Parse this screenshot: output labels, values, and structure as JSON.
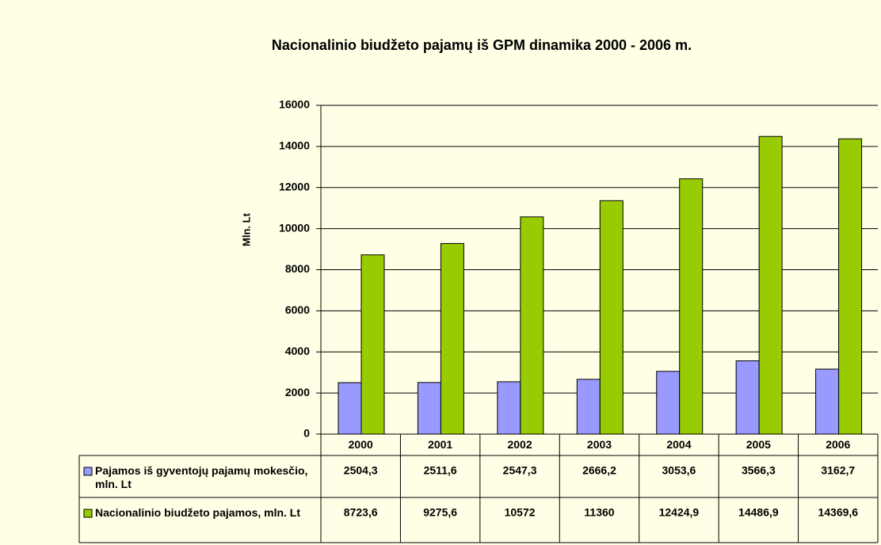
{
  "chart_data": {
    "type": "bar",
    "title": "Nacionalinio biudžeto pajamų iš GPM dinamika 2000 - 2006 m.",
    "y_label": "Mln. Lt",
    "categories": [
      "2000",
      "2001",
      "2002",
      "2003",
      "2004",
      "2005",
      "2006"
    ],
    "series": [
      {
        "name": "Pajamos iš gyventojų pajamų mokesčio, mln. Lt",
        "color": "#9999ff",
        "values": [
          2504.3,
          2511.6,
          2547.3,
          2666.2,
          3053.6,
          3566.3,
          3162.7
        ],
        "value_labels": [
          "2504,3",
          "2511,6",
          "2547,3",
          "2666,2",
          "3053,6",
          "3566,3",
          "3162,7"
        ]
      },
      {
        "name": "Nacionalinio biudžeto pajamos, mln. Lt",
        "color": "#99cc00",
        "values": [
          8723.6,
          9275.6,
          10572,
          11360,
          12424.9,
          14486.9,
          14369.6
        ],
        "value_labels": [
          "8723,6",
          "9275,6",
          "10572",
          "11360",
          "12424,9",
          "14486,9",
          "14369,6"
        ]
      }
    ],
    "ylim": [
      0,
      16000
    ],
    "yticks": [
      0,
      2000,
      4000,
      6000,
      8000,
      10000,
      12000,
      14000,
      16000
    ],
    "grid": true
  }
}
